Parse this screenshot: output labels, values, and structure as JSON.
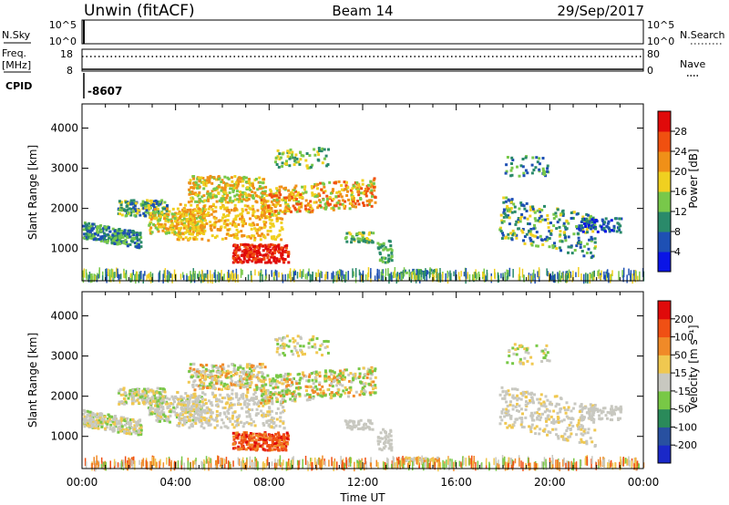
{
  "header": {
    "title": "Unwin (fitACF)",
    "beam": "Beam 14",
    "date": "29/Sep/2017"
  },
  "status_panels": {
    "nsky_label": "N.Sky",
    "nsearch_label": "N.Search",
    "nsky_top": "10^5",
    "nsky_bottom": "10^0",
    "nsearch_top": "10^5",
    "nsearch_bottom": "10^0",
    "freq_label_1": "Freq.",
    "freq_label_2": "[MHz]",
    "freq_top": "18",
    "freq_bottom": "8",
    "nave_label": "Nave",
    "nave_top": "80",
    "nave_bottom": "0",
    "cpid_label": "CPID",
    "cpid_value": "-8607"
  },
  "chart_data": [
    {
      "type": "heatmap",
      "name": "power",
      "ylabel": "Slant Range [km]",
      "ylim": [
        200,
        4600
      ],
      "yticks": [
        1000,
        2000,
        3000,
        4000
      ],
      "xlim": [
        0,
        24
      ],
      "colorbar": {
        "label": "Power [dB]",
        "ticks": [
          "4",
          "8",
          "12",
          "16",
          "20",
          "24",
          "28"
        ],
        "range": [
          0,
          32
        ],
        "colors": [
          "#0a14e6",
          "#1e50b4",
          "#2a8a6a",
          "#78c84a",
          "#f0d020",
          "#f09018",
          "#f05010",
          "#e00a0a"
        ]
      }
    },
    {
      "type": "heatmap",
      "name": "velocity",
      "ylabel": "Slant Range [km]",
      "ylim": [
        200,
        4600
      ],
      "yticks": [
        1000,
        2000,
        3000,
        4000
      ],
      "xlim": [
        0,
        24
      ],
      "xticks": [
        "00:00",
        "04:00",
        "08:00",
        "12:00",
        "16:00",
        "20:00",
        "00:00"
      ],
      "xlabel": "Time UT",
      "colorbar": {
        "label": "Velocity [m s⁻¹]",
        "ticks": [
          "200",
          "100",
          "50",
          "15",
          "-15",
          "-50",
          "-100",
          "-200"
        ],
        "colors": [
          "#1a28c8",
          "#2850a0",
          "#2a8a5a",
          "#78c846",
          "#c8c8c0",
          "#f0c850",
          "#f08a28",
          "#f05014",
          "#e00a0a"
        ]
      }
    }
  ]
}
